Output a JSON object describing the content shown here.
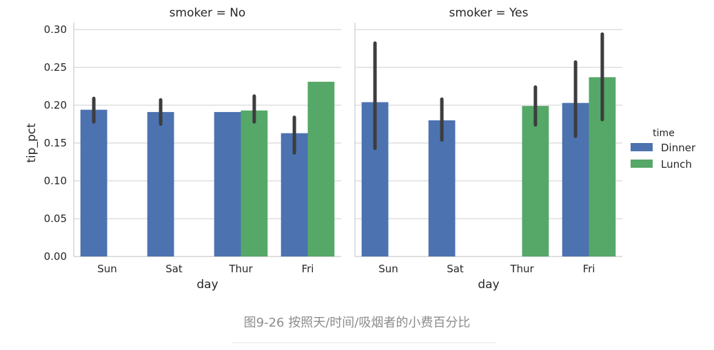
{
  "chart_data": {
    "type": "bar",
    "ylabel": "tip_pct",
    "xlabel": "day",
    "ylim": [
      0,
      0.3
    ],
    "yticks": [
      "0.00",
      "0.05",
      "0.10",
      "0.15",
      "0.20",
      "0.25",
      "0.30"
    ],
    "categories": [
      "Sun",
      "Sat",
      "Thur",
      "Fri"
    ],
    "grid": "horizontal",
    "legend": {
      "title": "time",
      "placement": "right",
      "entries": [
        {
          "label": "Dinner",
          "color": "#4c72b0"
        },
        {
          "label": "Lunch",
          "color": "#55a868"
        }
      ]
    },
    "facets": [
      {
        "title": "smoker = No",
        "series": [
          {
            "name": "Dinner",
            "values": [
              0.194,
              0.191,
              0.191,
              0.163
            ],
            "err_low": [
              0.178,
              0.175,
              null,
              0.137
            ],
            "err_high": [
              0.209,
              0.207,
              null,
              0.184
            ]
          },
          {
            "name": "Lunch",
            "values": [
              null,
              null,
              0.193,
              0.231
            ],
            "err_low": [
              null,
              null,
              0.178,
              null
            ],
            "err_high": [
              null,
              null,
              0.212,
              null
            ]
          }
        ]
      },
      {
        "title": "smoker = Yes",
        "series": [
          {
            "name": "Dinner",
            "values": [
              0.204,
              0.18,
              null,
              0.203
            ],
            "err_low": [
              0.143,
              0.154,
              null,
              0.159
            ],
            "err_high": [
              0.282,
              0.208,
              null,
              0.257
            ]
          },
          {
            "name": "Lunch",
            "values": [
              null,
              null,
              0.199,
              0.237
            ],
            "err_low": [
              null,
              null,
              0.174,
              0.181
            ],
            "err_high": [
              null,
              null,
              0.224,
              0.294
            ]
          }
        ]
      }
    ]
  },
  "caption": "图9-26 按照天/时间/吸烟者的小费百分比"
}
